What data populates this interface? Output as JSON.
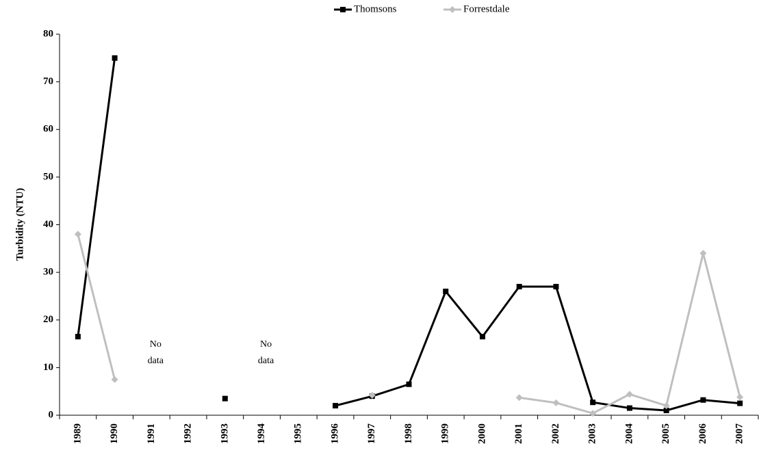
{
  "chart_data": {
    "type": "line",
    "categories": [
      "1989",
      "1990",
      "1991",
      "1992",
      "1993",
      "1994",
      "1995",
      "1996",
      "1997",
      "1998",
      "1999",
      "2000",
      "2001",
      "2002",
      "2003",
      "2004",
      "2005",
      "2006",
      "2007"
    ],
    "series": [
      {
        "name": "Thomsons",
        "color": "#000000",
        "marker": "square",
        "values": [
          16.5,
          75,
          null,
          null,
          3.5,
          null,
          null,
          2,
          4,
          6.5,
          26,
          16.5,
          27,
          27,
          2.7,
          1.5,
          1,
          3.2,
          2.5
        ]
      },
      {
        "name": "Forrestdale",
        "color": "#bfbfbf",
        "marker": "diamond",
        "values": [
          38,
          7.5,
          null,
          null,
          null,
          null,
          null,
          null,
          4.2,
          null,
          null,
          null,
          3.7,
          2.6,
          0.4,
          4.4,
          2,
          34,
          3.8
        ]
      }
    ],
    "y_label": "Turbidity (NTU)",
    "ylim": [
      0,
      80
    ],
    "yticks": [
      0,
      10,
      20,
      30,
      40,
      50,
      60,
      70,
      80
    ],
    "annotations": [
      "No data",
      "No data"
    ],
    "legend": "top",
    "grid": false
  }
}
